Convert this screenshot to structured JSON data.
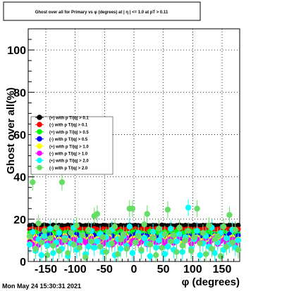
{
  "chart_data": {
    "type": "scatter",
    "title": "Ghost over all for Primary vs φ (degrees) at | η | <= 1.0 at pT > 0.11",
    "xlabel": "φ (degrees)",
    "ylabel": "Ghost over all(%)",
    "xlim": [
      -180,
      180
    ],
    "ylim": [
      0,
      110
    ],
    "x_ticks": [
      -150,
      -100,
      -50,
      0,
      50,
      100,
      150
    ],
    "y_ticks": [
      0,
      20,
      40,
      60,
      80,
      100
    ],
    "grid": true,
    "legend_position": "left",
    "series": [
      {
        "name": "(+) with p T/|q| > 0.1",
        "color": "#000000",
        "marker": "circle",
        "values": [
          17.0,
          17.2,
          16.8,
          17.1,
          16.9,
          17.3,
          17.0,
          16.7,
          17.2,
          16.9,
          17.1,
          17.0,
          16.8,
          17.2,
          17.0,
          16.9,
          17.1,
          17.3,
          16.8,
          17.0,
          17.1,
          16.9,
          17.2,
          17.0,
          16.8,
          17.1,
          17.0,
          16.9,
          17.2,
          17.0,
          16.8,
          17.1,
          16.9,
          17.0,
          17.2,
          16.9,
          17.1,
          17.0,
          16.8,
          17.2,
          17.0,
          16.9,
          17.1,
          17.0,
          16.8,
          17.2,
          17.0,
          16.9,
          17.1,
          16.8,
          17.0,
          17.2,
          16.9,
          17.1,
          17.0,
          16.8,
          17.2,
          17.0,
          16.9,
          17.1,
          17.0,
          16.8,
          17.2,
          17.0,
          16.9,
          17.1,
          17.0,
          16.8,
          17.2,
          17.0,
          16.9,
          17.1
        ]
      },
      {
        "name": "(-) with p T/|q| > 0.1",
        "color": "#ff0000",
        "marker": "circle",
        "values": [
          15.2,
          15.5,
          15.0,
          15.4,
          15.1,
          15.6,
          15.3,
          14.9,
          15.5,
          15.2,
          15.4,
          15.0,
          15.3,
          15.6,
          15.1,
          15.4,
          15.2,
          15.5,
          15.0,
          15.3,
          15.4,
          15.1,
          15.6,
          15.2,
          15.0,
          15.4,
          15.3,
          15.1,
          15.5,
          15.2,
          15.0,
          15.4,
          15.1,
          15.3,
          15.5,
          15.2,
          15.4,
          15.0,
          15.3,
          15.6,
          15.1,
          15.4,
          15.2,
          15.5,
          15.0,
          15.3,
          15.4,
          15.1,
          15.6,
          15.2,
          15.0,
          15.4,
          15.3,
          15.1,
          15.5,
          15.2,
          15.0,
          15.4,
          15.1,
          15.3,
          15.5,
          15.2,
          15.4,
          15.0,
          15.3,
          15.6,
          15.1,
          15.4,
          15.2,
          15.5,
          15.0,
          15.3
        ]
      },
      {
        "name": "(+) with p T/|q| > 0.5",
        "color": "#00ff00",
        "marker": "circle",
        "values": [
          13.5,
          12.8,
          14.0,
          13.2,
          12.5,
          13.8,
          14.2,
          12.9,
          13.4,
          13.0,
          14.5,
          12.7,
          13.6,
          13.9,
          12.6,
          13.3,
          14.1,
          12.8,
          13.7,
          13.1,
          12.9,
          14.3,
          13.5,
          12.6,
          13.8,
          13.2,
          14.0,
          12.7,
          13.4,
          13.6,
          12.8,
          14.2,
          13.0,
          13.3,
          12.5,
          13.9,
          14.1,
          12.9,
          13.5,
          13.2,
          12.7,
          14.4,
          13.1,
          13.8,
          12.6,
          13.3,
          14.0,
          12.9,
          13.6,
          13.0,
          14.2,
          12.8,
          13.4,
          13.7,
          12.6,
          13.9,
          14.3,
          12.7,
          13.2,
          13.5,
          12.8,
          14.1,
          13.3,
          13.0,
          12.9,
          13.6,
          14.0,
          12.7,
          13.4,
          13.8,
          12.6,
          13.1
        ]
      },
      {
        "name": "(-) with p T/|q| > 0.5",
        "color": "#0000ff",
        "marker": "circle",
        "values": [
          11.5,
          12.2,
          10.8,
          11.9,
          12.5,
          11.0,
          11.7,
          12.8,
          10.9,
          11.4,
          12.1,
          11.8,
          10.7,
          12.4,
          11.2,
          11.6,
          12.9,
          10.8,
          11.3,
          12.0,
          11.9,
          10.6,
          12.3,
          11.5,
          11.1,
          12.6,
          10.9,
          11.8,
          12.2,
          11.4,
          10.8,
          12.5,
          11.7,
          11.0,
          12.1,
          11.6,
          12.8,
          10.7,
          11.3,
          12.4,
          11.9,
          11.2,
          12.7,
          10.9,
          11.5,
          12.0,
          11.8,
          10.6,
          12.3,
          11.4,
          11.1,
          12.6,
          10.8,
          11.7,
          12.2,
          11.5,
          10.9,
          12.4,
          11.3,
          11.9,
          12.0,
          11.6,
          10.7,
          12.5,
          11.2,
          11.8,
          12.1,
          11.0,
          12.9,
          11.4,
          11.7,
          12.3
        ]
      },
      {
        "name": "(+) with p T/|q| > 1.0",
        "color": "#ffff00",
        "marker": "circle",
        "values": [
          10.5,
          9.2,
          11.8,
          8.7,
          10.9,
          12.1,
          9.6,
          10.2,
          11.4,
          8.9,
          10.7,
          9.8,
          12.4,
          10.1,
          9.3,
          11.6,
          10.4,
          8.8,
          11.1,
          9.9,
          10.6,
          12.0,
          9.4,
          10.8,
          11.3,
          9.1,
          10.3,
          11.9,
          8.6,
          10.0,
          11.7,
          9.7,
          10.5,
          12.2,
          9.0,
          10.9,
          11.2,
          9.5,
          10.1,
          11.5,
          8.9,
          10.6,
          12.3,
          9.8,
          10.2,
          11.0,
          9.3,
          10.8,
          11.8,
          9.6,
          10.4,
          12.0,
          8.7,
          10.7,
          11.4,
          9.2,
          10.3,
          11.6,
          9.9,
          10.0,
          11.9,
          9.4,
          10.9,
          12.1,
          9.1,
          10.5,
          11.3,
          9.7,
          10.2,
          11.7,
          8.8,
          10.6
        ]
      },
      {
        "name": "(-) with p T/|q| > 1.0",
        "color": "#ff00ff",
        "marker": "circle",
        "values": [
          9.5,
          8.2,
          10.8,
          7.6,
          9.9,
          11.2,
          8.7,
          9.3,
          10.4,
          7.9,
          9.7,
          8.8,
          11.5,
          9.1,
          8.3,
          10.6,
          9.4,
          7.8,
          10.1,
          8.9,
          9.6,
          11.0,
          8.4,
          9.8,
          10.3,
          8.1,
          9.2,
          10.9,
          7.7,
          9.0,
          10.7,
          8.6,
          9.5,
          11.3,
          8.0,
          9.9,
          10.2,
          8.5,
          9.1,
          10.5,
          7.9,
          9.6,
          11.4,
          8.8,
          9.2,
          10.0,
          8.3,
          9.8,
          10.8,
          8.6,
          9.4,
          11.1,
          7.6,
          9.7,
          10.4,
          8.2,
          9.3,
          10.6,
          8.9,
          9.0,
          10.9,
          8.4,
          9.9,
          11.2,
          8.1,
          9.5,
          10.3,
          8.7,
          9.2,
          10.7,
          7.8,
          9.6
        ]
      },
      {
        "name": "(+) with p T/|q| > 2.0",
        "color": "#00ffff",
        "marker": "circle",
        "values": [
          8.0,
          14.0,
          5.0,
          10.5,
          3.0,
          12.0,
          7.5,
          15.5,
          4.0,
          9.0,
          13.5,
          6.0,
          11.0,
          2.5,
          8.5,
          16.0,
          5.5,
          10.0,
          12.5,
          3.5,
          7.0,
          14.5,
          6.5,
          9.5,
          13.0,
          4.5,
          11.5,
          8.0,
          15.0,
          3.0,
          10.5,
          6.0,
          12.0,
          7.5,
          16.5,
          4.0,
          9.0,
          13.5,
          5.0,
          11.0,
          8.5,
          2.5,
          14.0,
          6.5,
          10.0,
          12.5,
          3.5,
          7.0,
          15.5,
          5.5,
          9.5,
          13.0,
          4.5,
          11.5,
          25.5,
          6.0,
          10.5,
          14.5,
          3.0,
          8.5,
          12.0,
          7.0,
          16.0,
          4.0,
          9.0,
          13.5,
          5.5,
          11.0,
          8.0,
          15.0,
          6.5,
          10.0
        ]
      },
      {
        "name": "(-) with p T/|q| > 2.0",
        "color": "#66dd66",
        "marker": "circle",
        "values": [
          12.0,
          37.5,
          6.0,
          18.0,
          9.0,
          14.5,
          3.0,
          11.0,
          7.5,
          16.0,
          5.0,
          37.5,
          10.0,
          4.0,
          13.5,
          8.0,
          17.0,
          6.5,
          12.5,
          2.0,
          15.0,
          9.5,
          21.5,
          22.5,
          7.0,
          11.5,
          4.5,
          14.0,
          8.5,
          16.5,
          3.5,
          10.5,
          13.0,
          6.0,
          25.0,
          25.0,
          9.0,
          12.0,
          5.5,
          17.5,
          22.5,
          8.0,
          11.0,
          3.0,
          15.5,
          6.5,
          13.0,
          24.5,
          9.5,
          12.5,
          4.5,
          16.0,
          7.5,
          10.0,
          14.5,
          5.0,
          11.5,
          25.0,
          8.5,
          13.5,
          3.5,
          17.0,
          6.0,
          10.5,
          12.0,
          2.5,
          16.5,
          7.0,
          22.0,
          9.0,
          15.0,
          5.5
        ]
      }
    ]
  },
  "footer": {
    "timestamp": "Mon May 24 15:30:31 2021"
  }
}
